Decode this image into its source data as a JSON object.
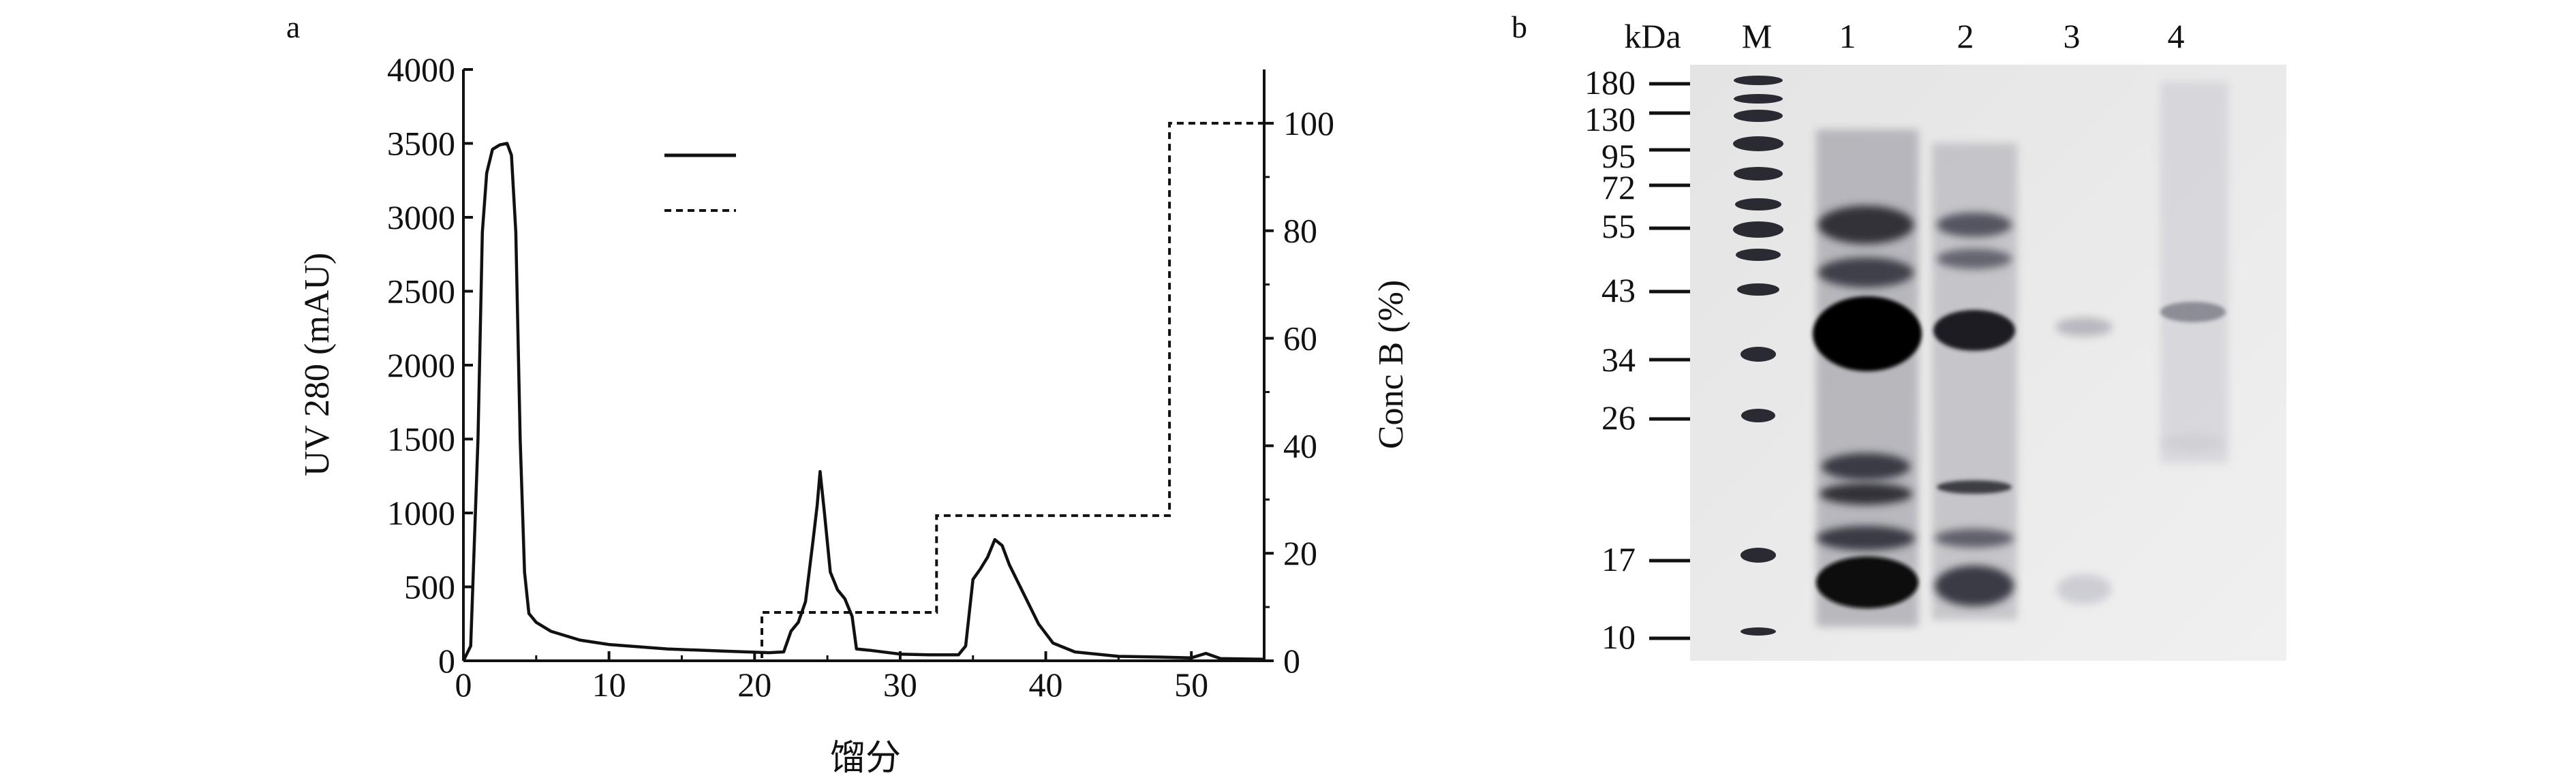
{
  "panel_a": {
    "panel_label": "a",
    "y_left_label": "UV 280 (mAU)",
    "y_right_label": "Conc B (%)",
    "x_label": "馏分",
    "x_ticks": [
      "0",
      "10",
      "20",
      "30",
      "40",
      "50"
    ],
    "y_left_ticks": [
      "0",
      "500",
      "1000",
      "1500",
      "2000",
      "2500",
      "3000",
      "3500",
      "4000"
    ],
    "y_right_ticks": [
      "0",
      "20",
      "40",
      "60",
      "80",
      "100"
    ]
  },
  "panel_b": {
    "panel_label": "b",
    "unit_label": "kDa",
    "lane_labels": [
      "M",
      "1",
      "2",
      "3",
      "4"
    ],
    "marker_labels": [
      "180",
      "130",
      "95",
      "72",
      "55",
      "43",
      "34",
      "26",
      "17",
      "10"
    ]
  },
  "chart_data": [
    {
      "type": "line",
      "xlabel": "馏分",
      "ylabel": "UV 280 (mAU)",
      "y2label": "Conc B (%)",
      "xlim": [
        0,
        55
      ],
      "ylim": [
        0,
        4000
      ],
      "y2lim": [
        0,
        110
      ],
      "grid": false,
      "legend": "top-center, symbols only (solid, dashed), no text",
      "series": [
        {
          "style": "solid",
          "axis": "left",
          "points": [
            [
              0,
              0
            ],
            [
              0.5,
              100
            ],
            [
              1,
              1500
            ],
            [
              1.3,
              2900
            ],
            [
              1.6,
              3300
            ],
            [
              2,
              3460
            ],
            [
              2.5,
              3490
            ],
            [
              3,
              3500
            ],
            [
              3.3,
              3420
            ],
            [
              3.6,
              2900
            ],
            [
              3.9,
              1500
            ],
            [
              4.2,
              600
            ],
            [
              4.5,
              320
            ],
            [
              5,
              260
            ],
            [
              6,
              200
            ],
            [
              8,
              140
            ],
            [
              10,
              110
            ],
            [
              14,
              80
            ],
            [
              18,
              65
            ],
            [
              21,
              55
            ],
            [
              22,
              60
            ],
            [
              22.5,
              200
            ],
            [
              23,
              260
            ],
            [
              23.5,
              400
            ],
            [
              24,
              800
            ],
            [
              24.3,
              1050
            ],
            [
              24.5,
              1280
            ],
            [
              24.8,
              1000
            ],
            [
              25.2,
              600
            ],
            [
              25.7,
              480
            ],
            [
              26.2,
              420
            ],
            [
              26.7,
              300
            ],
            [
              27,
              80
            ],
            [
              28,
              70
            ],
            [
              30,
              45
            ],
            [
              32,
              40
            ],
            [
              34,
              40
            ],
            [
              34.5,
              100
            ],
            [
              35,
              550
            ],
            [
              35.5,
              620
            ],
            [
              36,
              700
            ],
            [
              36.5,
              820
            ],
            [
              37,
              780
            ],
            [
              37.5,
              650
            ],
            [
              38.5,
              450
            ],
            [
              39.5,
              250
            ],
            [
              40.5,
              120
            ],
            [
              42,
              60
            ],
            [
              45,
              30
            ],
            [
              48,
              25
            ],
            [
              50,
              20
            ],
            [
              51,
              50
            ],
            [
              52,
              15
            ],
            [
              55,
              10
            ]
          ]
        },
        {
          "style": "dashed",
          "axis": "right",
          "points": [
            [
              0,
              0
            ],
            [
              20.5,
              0
            ],
            [
              20.5,
              9
            ],
            [
              32.5,
              9
            ],
            [
              32.5,
              27
            ],
            [
              48.5,
              27
            ],
            [
              48.5,
              100
            ],
            [
              55,
              100
            ]
          ]
        }
      ]
    },
    {
      "type": "gel_image",
      "unit": "kDa",
      "lanes": [
        "M",
        "1",
        "2",
        "3",
        "4"
      ],
      "markers_kDa": [
        180,
        130,
        95,
        72,
        55,
        43,
        34,
        26,
        17,
        10
      ]
    }
  ]
}
